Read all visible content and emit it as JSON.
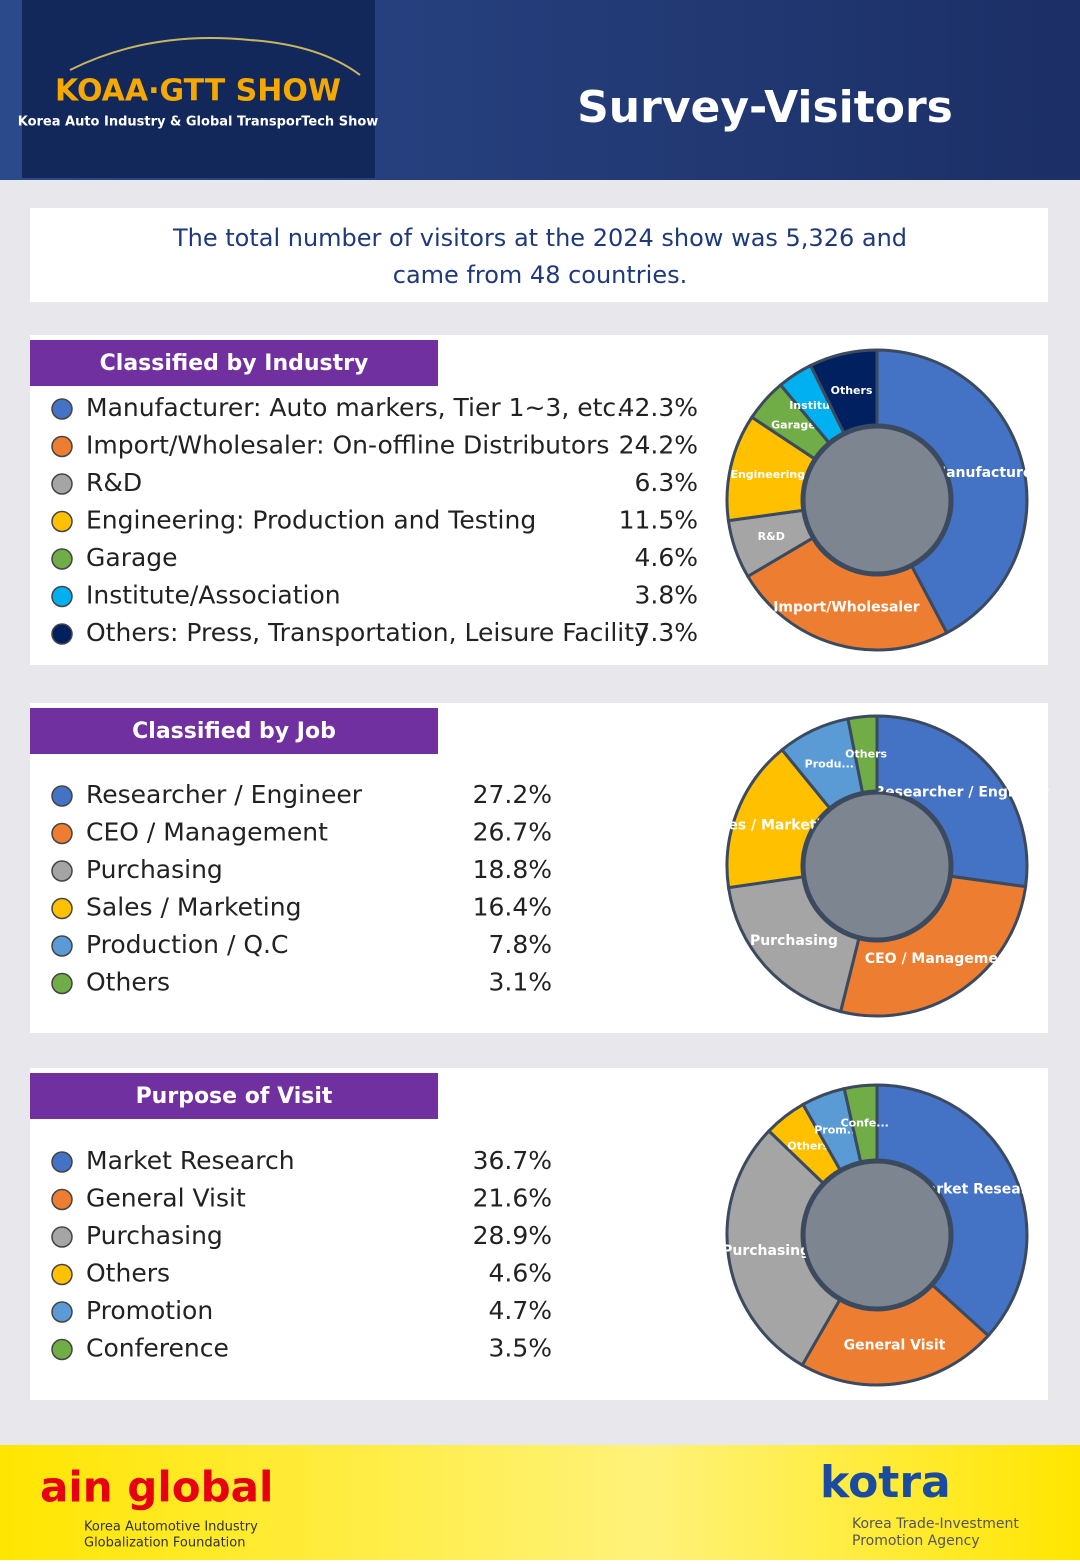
{
  "header": {
    "logo": "KOAA·GTT SHOW",
    "logo_subtitle": "Korea Auto Industry & Global TransporTech Show",
    "title": "Survey-Visitors"
  },
  "summary": [
    "The total number of visitors at the 2024 show was 5,326 and",
    "came from 48 countries."
  ],
  "chart_data": [
    {
      "type": "pie",
      "title": "Classified by Industry",
      "categories": [
        "Manufacturer: Auto markers, Tier 1~3, etc.",
        "Import/Wholesaler: On-offline Distributors",
        "R&D",
        "Engineering: Production and Testing",
        "Garage",
        "Institute/Association",
        "Others: Press, Transportation, Leisure Facility"
      ],
      "values": [
        42.3,
        24.2,
        6.3,
        11.5,
        4.6,
        3.8,
        7.3
      ],
      "value_labels": [
        "42.3%",
        "24.2%",
        "6.3%",
        "11.5%",
        "4.6%",
        "3.8%",
        "7.3%"
      ],
      "slice_labels": [
        "Manufacturer",
        "Import/Wholesaler",
        "R&D",
        "Engineering",
        "Garage",
        "Institu...",
        "Others"
      ],
      "colors": [
        "#4472c4",
        "#ed7d31",
        "#a5a5a5",
        "#ffc000",
        "#70ad47",
        "#00b0f0",
        "#002060"
      ]
    },
    {
      "type": "pie",
      "title": "Classified by Job",
      "categories": [
        "Researcher / Engineer",
        "CEO / Management",
        "Purchasing",
        "Sales / Marketing",
        "Production / Q.C",
        "Others"
      ],
      "values": [
        27.2,
        26.7,
        18.8,
        16.4,
        7.8,
        3.1
      ],
      "value_labels": [
        "27.2%",
        "26.7%",
        "18.8%",
        "16.4%",
        "7.8%",
        "3.1%"
      ],
      "slice_labels": [
        "Researcher / Engineer",
        "CEO / Management",
        "Purchasing",
        "Sales / Marketing",
        "Produ...",
        "Others"
      ],
      "colors": [
        "#4472c4",
        "#ed7d31",
        "#a5a5a5",
        "#ffc000",
        "#5b9bd5",
        "#70ad47"
      ]
    },
    {
      "type": "pie",
      "title": "Purpose of Visit",
      "categories": [
        "Market Research",
        "General Visit",
        "Purchasing",
        "Others",
        "Promotion",
        "Conference"
      ],
      "values": [
        36.7,
        21.6,
        28.9,
        4.6,
        4.7,
        3.5
      ],
      "value_labels": [
        "36.7%",
        "21.6%",
        "28.9%",
        "4.6%",
        "4.7%",
        "3.5%"
      ],
      "slice_labels": [
        "Market Research",
        "General Visit",
        "Purchasing",
        "Others",
        "Prom...",
        "Confe..."
      ],
      "colors": [
        "#4472c4",
        "#ed7d31",
        "#a5a5a5",
        "#ffc000",
        "#5b9bd5",
        "#70ad47"
      ]
    }
  ],
  "footer": {
    "left_logo": "ain global",
    "left_caption": [
      "Korea Automotive Industry",
      "Globalization Foundation"
    ],
    "right_logo": "kotra",
    "right_caption": [
      "Korea Trade-Investment",
      "Promotion Agency"
    ]
  }
}
